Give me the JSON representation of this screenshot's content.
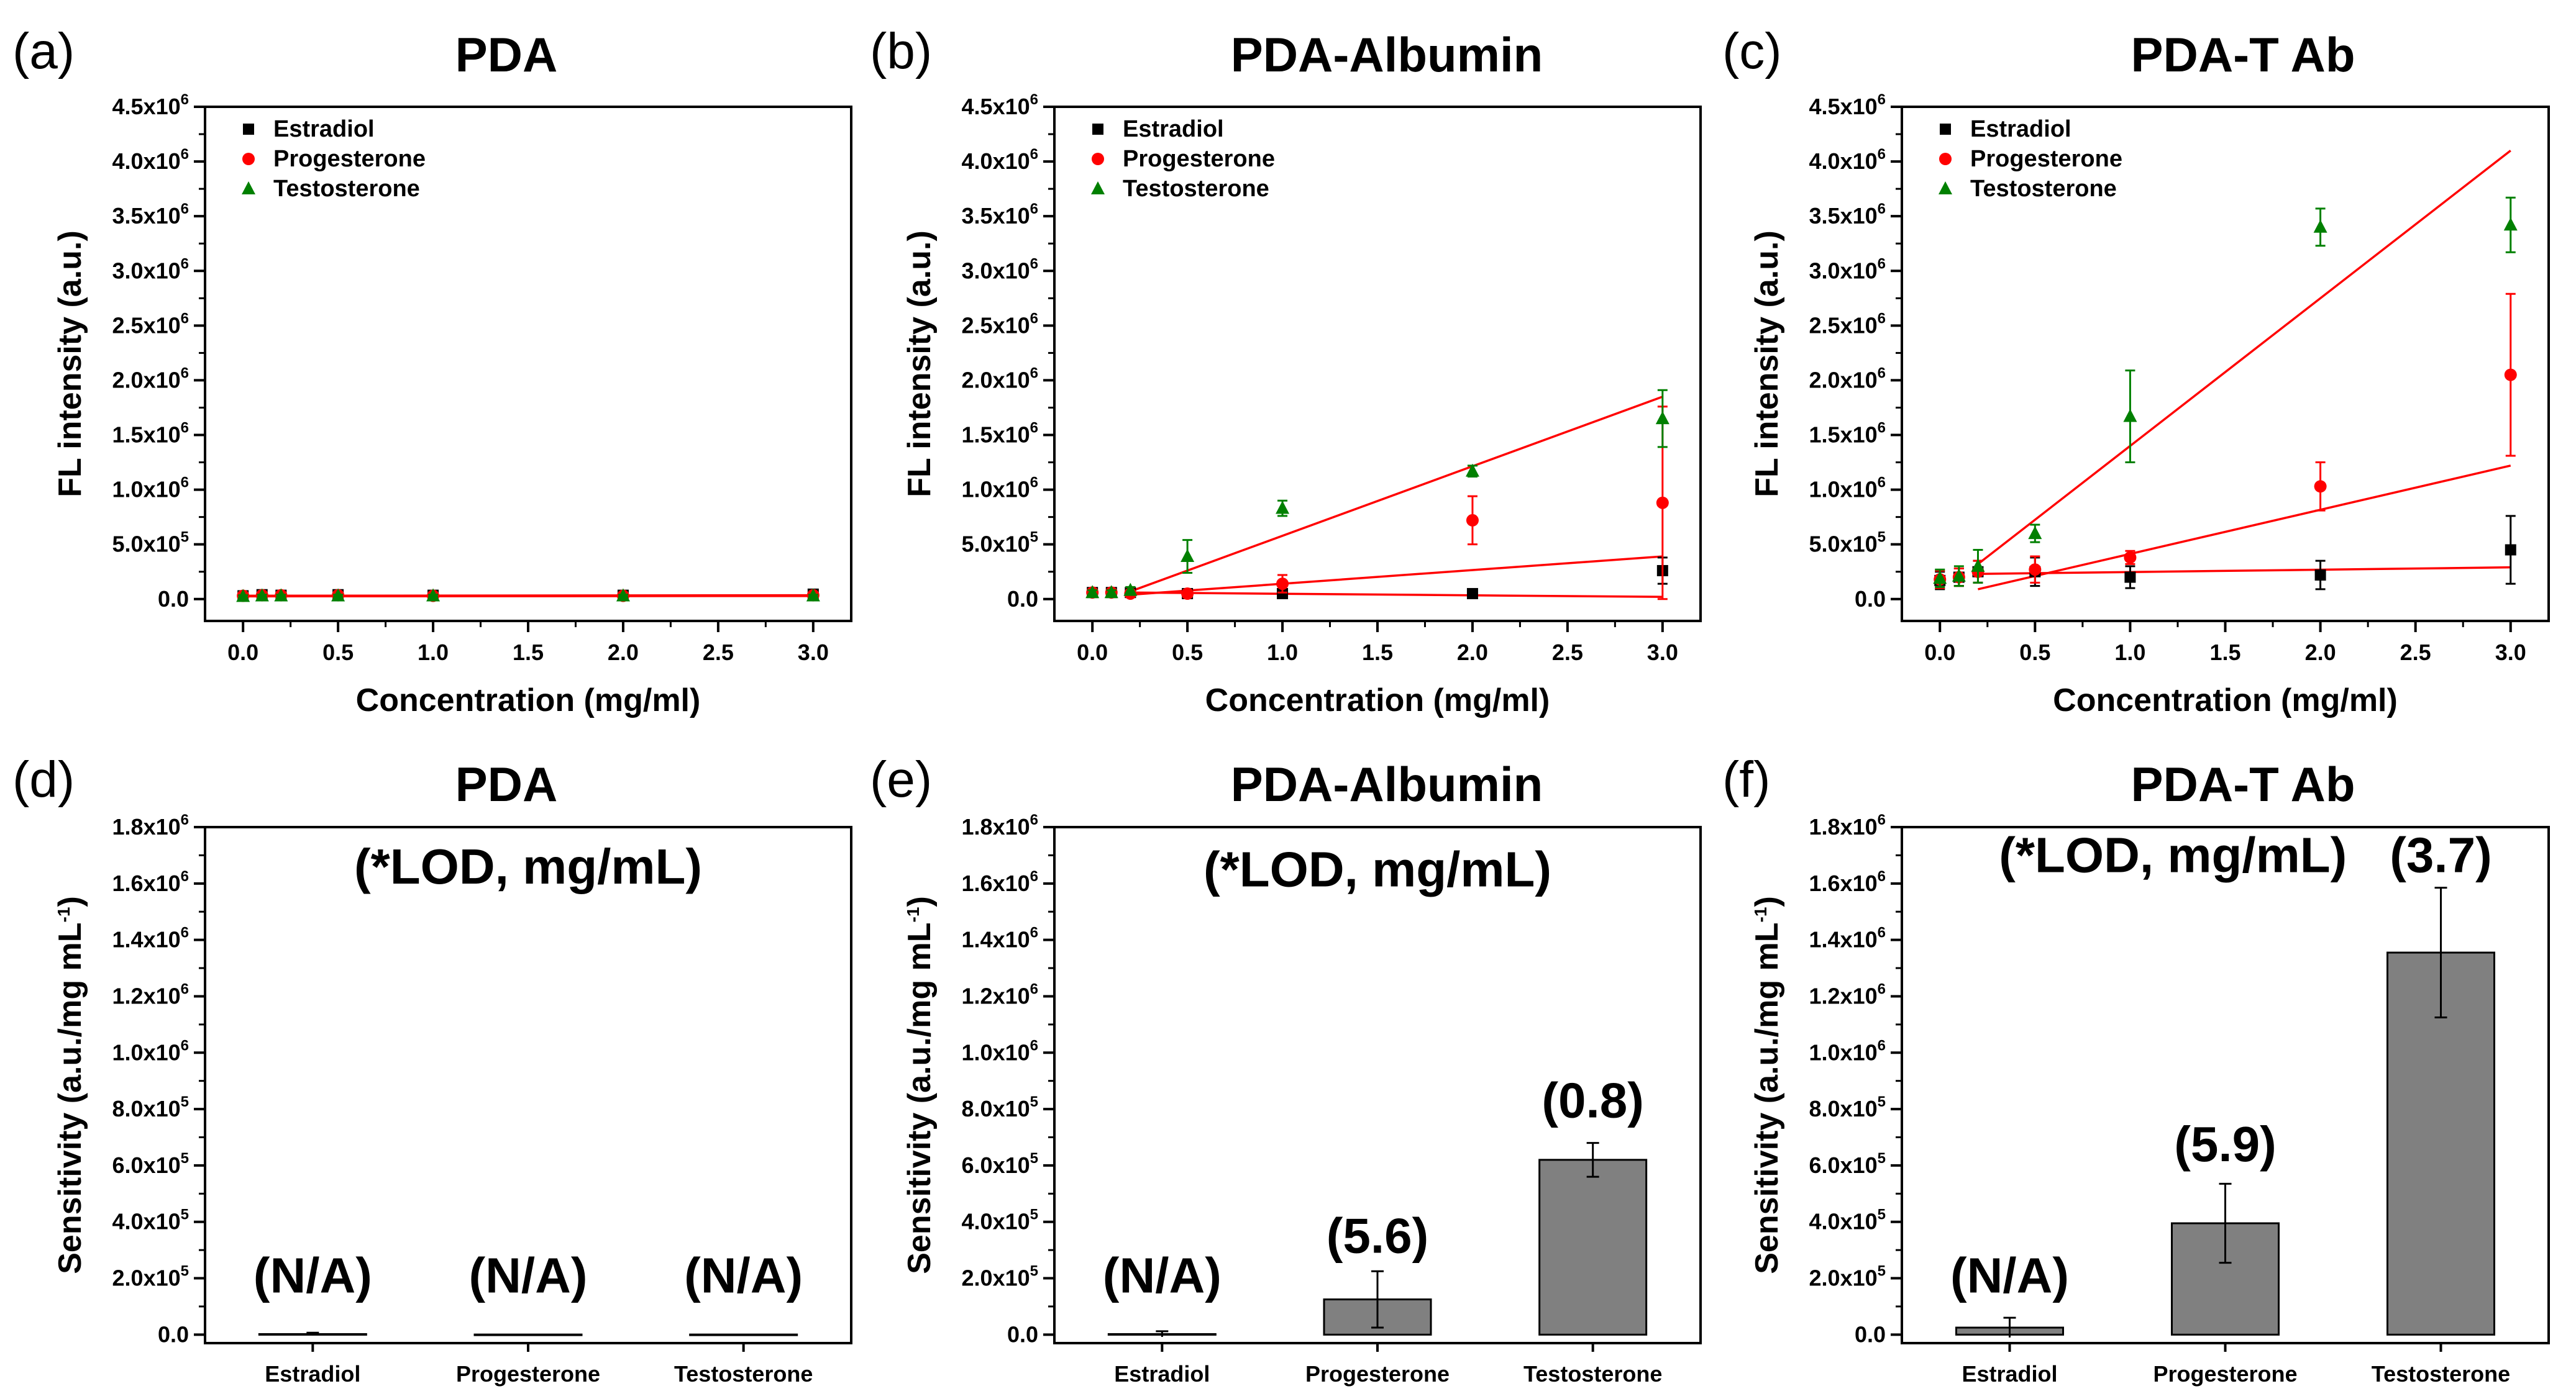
{
  "figure": {
    "panel_count": 6
  },
  "colors": {
    "estradiol": "#000000",
    "progesterone": "#ff0000",
    "testosterone": "#008000",
    "fit": "#ff0000",
    "bar": "#808080"
  },
  "chart_data": [
    {
      "id": "a",
      "letter": "(a)",
      "type": "scatter",
      "title": "PDA",
      "xlabel": "Concentration (mg/ml)",
      "ylabel": "FL intensity (a.u.)",
      "xlim": [
        -0.2,
        3.2
      ],
      "ylim": [
        -200000,
        4500000
      ],
      "xticks": [
        0.0,
        0.5,
        1.0,
        1.5,
        2.0,
        2.5,
        3.0
      ],
      "xtick_labels": [
        "0.0",
        "0.5",
        "1.0",
        "1.5",
        "2.0",
        "2.5",
        "3.0"
      ],
      "yticks": [
        0,
        500000,
        1000000,
        1500000,
        2000000,
        2500000,
        3000000,
        3500000,
        4000000,
        4500000
      ],
      "ytick_labels": [
        {
          "m": "0.0"
        },
        {
          "m": "5.0x10",
          "e": "5"
        },
        {
          "m": "1.0x10",
          "e": "6"
        },
        {
          "m": "1.5x10",
          "e": "6"
        },
        {
          "m": "2.0x10",
          "e": "6"
        },
        {
          "m": "2.5x10",
          "e": "6"
        },
        {
          "m": "3.0x10",
          "e": "6"
        },
        {
          "m": "3.5x10",
          "e": "6"
        },
        {
          "m": "4.0x10",
          "e": "6"
        },
        {
          "m": "4.5x10",
          "e": "6"
        }
      ],
      "legend": [
        "Estradiol",
        "Progesterone",
        "Testosterone"
      ],
      "series": [
        {
          "name": "Estradiol",
          "marker": "square",
          "color": "#000000",
          "x": [
            0.0,
            0.1,
            0.2,
            0.5,
            1.0,
            2.0,
            3.0
          ],
          "y": [
            30000,
            40000,
            35000,
            40000,
            35000,
            35000,
            45000
          ],
          "err": [
            15000,
            15000,
            15000,
            15000,
            15000,
            15000,
            15000
          ],
          "fit": [
            0.0,
            30000,
            3.0,
            35000
          ]
        },
        {
          "name": "Progesterone",
          "marker": "circle",
          "color": "#ff0000",
          "x": [
            0.0,
            0.1,
            0.2,
            0.5,
            1.0,
            2.0,
            3.0
          ],
          "y": [
            30000,
            35000,
            35000,
            35000,
            30000,
            30000,
            35000
          ],
          "err": [
            10000,
            10000,
            10000,
            10000,
            10000,
            10000,
            10000
          ],
          "fit": [
            0.0,
            30000,
            3.0,
            30000
          ]
        },
        {
          "name": "Testosterone",
          "marker": "triangle",
          "color": "#008000",
          "x": [
            0.0,
            0.1,
            0.2,
            0.5,
            1.0,
            2.0,
            3.0
          ],
          "y": [
            25000,
            30000,
            30000,
            30000,
            30000,
            30000,
            30000
          ],
          "err": [
            10000,
            10000,
            10000,
            10000,
            10000,
            10000,
            10000
          ],
          "fit": [
            0.0,
            25000,
            3.0,
            28000
          ]
        }
      ]
    },
    {
      "id": "b",
      "letter": "(b)",
      "type": "scatter",
      "title": "PDA-Albumin",
      "xlabel": "Concentration (mg/ml)",
      "ylabel": "FL intensity (a.u.)",
      "xlim": [
        -0.2,
        3.2
      ],
      "ylim": [
        -200000,
        4500000
      ],
      "xticks": [
        0.0,
        0.5,
        1.0,
        1.5,
        2.0,
        2.5,
        3.0
      ],
      "xtick_labels": [
        "0.0",
        "0.5",
        "1.0",
        "1.5",
        "2.0",
        "2.5",
        "3.0"
      ],
      "yticks": [
        0,
        500000,
        1000000,
        1500000,
        2000000,
        2500000,
        3000000,
        3500000,
        4000000,
        4500000
      ],
      "ytick_labels": [
        {
          "m": "0.0"
        },
        {
          "m": "5.0x10",
          "e": "5"
        },
        {
          "m": "1.0x10",
          "e": "6"
        },
        {
          "m": "1.5x10",
          "e": "6"
        },
        {
          "m": "2.0x10",
          "e": "6"
        },
        {
          "m": "2.5x10",
          "e": "6"
        },
        {
          "m": "3.0x10",
          "e": "6"
        },
        {
          "m": "3.5x10",
          "e": "6"
        },
        {
          "m": "4.0x10",
          "e": "6"
        },
        {
          "m": "4.5x10",
          "e": "6"
        }
      ],
      "legend": [
        "Estradiol",
        "Progesterone",
        "Testosterone"
      ],
      "series": [
        {
          "name": "Estradiol",
          "marker": "square",
          "color": "#000000",
          "x": [
            0.0,
            0.1,
            0.2,
            0.5,
            1.0,
            2.0,
            3.0
          ],
          "y": [
            60000,
            60000,
            60000,
            50000,
            50000,
            50000,
            260000
          ],
          "err": [
            20000,
            20000,
            20000,
            20000,
            20000,
            20000,
            120000
          ],
          "fit": [
            0.2,
            60000,
            3.0,
            20000
          ]
        },
        {
          "name": "Progesterone",
          "marker": "circle",
          "color": "#ff0000",
          "x": [
            0.0,
            0.1,
            0.2,
            0.5,
            1.0,
            2.0,
            3.0
          ],
          "y": [
            60000,
            60000,
            50000,
            50000,
            140000,
            720000,
            880000
          ],
          "err": [
            20000,
            20000,
            20000,
            30000,
            80000,
            220000,
            880000
          ],
          "fit": [
            0.2,
            40000,
            3.0,
            390000
          ]
        },
        {
          "name": "Testosterone",
          "marker": "triangle",
          "color": "#008000",
          "x": [
            0.0,
            0.1,
            0.2,
            0.5,
            1.0,
            2.0,
            3.0
          ],
          "y": [
            60000,
            60000,
            80000,
            390000,
            830000,
            1170000,
            1650000
          ],
          "err": [
            20000,
            20000,
            30000,
            150000,
            70000,
            50000,
            260000
          ],
          "fit": [
            0.2,
            70000,
            3.0,
            1850000
          ]
        }
      ]
    },
    {
      "id": "c",
      "letter": "(c)",
      "type": "scatter",
      "title": "PDA-T Ab",
      "xlabel": "Concentration (mg/ml)",
      "ylabel": "FL intensity (a.u.)",
      "xlim": [
        -0.2,
        3.2
      ],
      "ylim": [
        -200000,
        4500000
      ],
      "xticks": [
        0.0,
        0.5,
        1.0,
        1.5,
        2.0,
        2.5,
        3.0
      ],
      "xtick_labels": [
        "0.0",
        "0.5",
        "1.0",
        "1.5",
        "2.0",
        "2.5",
        "3.0"
      ],
      "yticks": [
        0,
        500000,
        1000000,
        1500000,
        2000000,
        2500000,
        3000000,
        3500000,
        4000000,
        4500000
      ],
      "ytick_labels": [
        {
          "m": "0.0"
        },
        {
          "m": "5.0x10",
          "e": "5"
        },
        {
          "m": "1.0x10",
          "e": "6"
        },
        {
          "m": "1.5x10",
          "e": "6"
        },
        {
          "m": "2.0x10",
          "e": "6"
        },
        {
          "m": "2.5x10",
          "e": "6"
        },
        {
          "m": "3.0x10",
          "e": "6"
        },
        {
          "m": "3.5x10",
          "e": "6"
        },
        {
          "m": "4.0x10",
          "e": "6"
        },
        {
          "m": "4.5x10",
          "e": "6"
        }
      ],
      "legend": [
        "Estradiol",
        "Progesterone",
        "Testosterone"
      ],
      "series": [
        {
          "name": "Estradiol",
          "marker": "square",
          "color": "#000000",
          "x": [
            0.0,
            0.1,
            0.2,
            0.5,
            1.0,
            2.0,
            3.0
          ],
          "y": [
            170000,
            200000,
            250000,
            250000,
            200000,
            220000,
            450000
          ],
          "err": [
            80000,
            80000,
            100000,
            130000,
            100000,
            130000,
            310000
          ],
          "fit": [
            0.2,
            230000,
            3.0,
            290000
          ]
        },
        {
          "name": "Progesterone",
          "marker": "circle",
          "color": "#ff0000",
          "x": [
            0.0,
            0.1,
            0.2,
            0.5,
            1.0,
            2.0,
            3.0
          ],
          "y": [
            180000,
            200000,
            250000,
            270000,
            380000,
            1030000,
            2050000
          ],
          "err": [
            80000,
            80000,
            100000,
            120000,
            60000,
            220000,
            740000
          ],
          "fit": [
            0.2,
            90000,
            3.0,
            1220000
          ]
        },
        {
          "name": "Testosterone",
          "marker": "triangle",
          "color": "#008000",
          "x": [
            0.0,
            0.1,
            0.2,
            0.5,
            1.0,
            2.0,
            3.0
          ],
          "y": [
            190000,
            210000,
            300000,
            600000,
            1670000,
            3400000,
            3420000
          ],
          "err": [
            80000,
            90000,
            150000,
            80000,
            420000,
            170000,
            250000
          ],
          "fit": [
            0.2,
            320000,
            3.0,
            4100000
          ]
        }
      ]
    },
    {
      "id": "d",
      "letter": "(d)",
      "type": "bar",
      "title": "PDA",
      "xlabel": "",
      "ylabel": "Sensitivity (a.u./mg mL",
      "ylabel_sup": "-1",
      "ylabel_end": ")",
      "ylim": [
        -30000,
        1800000
      ],
      "yticks": [
        0,
        200000,
        400000,
        600000,
        800000,
        1000000,
        1200000,
        1400000,
        1600000,
        1800000
      ],
      "ytick_labels": [
        {
          "m": "0.0"
        },
        {
          "m": "2.0x10",
          "e": "5"
        },
        {
          "m": "4.0x10",
          "e": "5"
        },
        {
          "m": "6.0x10",
          "e": "5"
        },
        {
          "m": "8.0x10",
          "e": "5"
        },
        {
          "m": "1.0x10",
          "e": "6"
        },
        {
          "m": "1.2x10",
          "e": "6"
        },
        {
          "m": "1.4x10",
          "e": "6"
        },
        {
          "m": "1.6x10",
          "e": "6"
        },
        {
          "m": "1.8x10",
          "e": "6"
        }
      ],
      "categories": [
        "Estradiol",
        "Progesterone",
        "Testosterone"
      ],
      "values": [
        2000,
        500,
        500
      ],
      "errors": [
        5000,
        0,
        0
      ],
      "lod_labels": [
        "(N/A)",
        "(N/A)",
        "(N/A)"
      ],
      "lod_label_y": [
        150000,
        150000,
        150000
      ],
      "annotation": "(*LOD, mg/mL)",
      "annotation_y": 1600000,
      "annotation_xc": 1.0
    },
    {
      "id": "e",
      "letter": "(e)",
      "type": "bar",
      "title": "PDA-Albumin",
      "xlabel": "",
      "ylabel": "Sensitivity (a.u./mg mL",
      "ylabel_sup": "-1",
      "ylabel_end": ")",
      "ylim": [
        -30000,
        1800000
      ],
      "yticks": [
        0,
        200000,
        400000,
        600000,
        800000,
        1000000,
        1200000,
        1400000,
        1600000,
        1800000
      ],
      "ytick_labels": [
        {
          "m": "0.0"
        },
        {
          "m": "2.0x10",
          "e": "5"
        },
        {
          "m": "4.0x10",
          "e": "5"
        },
        {
          "m": "6.0x10",
          "e": "5"
        },
        {
          "m": "8.0x10",
          "e": "5"
        },
        {
          "m": "1.0x10",
          "e": "6"
        },
        {
          "m": "1.2x10",
          "e": "6"
        },
        {
          "m": "1.4x10",
          "e": "6"
        },
        {
          "m": "1.6x10",
          "e": "6"
        },
        {
          "m": "1.8x10",
          "e": "6"
        }
      ],
      "categories": [
        "Estradiol",
        "Progesterone",
        "Testosterone"
      ],
      "values": [
        2000,
        125000,
        620000
      ],
      "errors": [
        10000,
        100000,
        60000
      ],
      "lod_labels": [
        "(N/A)",
        "(5.6)",
        "(0.8)"
      ],
      "lod_label_y": [
        150000,
        290000,
        770000
      ],
      "annotation": "(*LOD, mg/mL)",
      "annotation_y": 1590000,
      "annotation_xc": 1.0
    },
    {
      "id": "f",
      "letter": "(f)",
      "type": "bar",
      "title": "PDA-T Ab",
      "xlabel": "",
      "ylabel": "Sensitivity (a.u./mg mL",
      "ylabel_sup": "-1",
      "ylabel_end": ")",
      "ylim": [
        -30000,
        1800000
      ],
      "yticks": [
        0,
        200000,
        400000,
        600000,
        800000,
        1000000,
        1200000,
        1400000,
        1600000,
        1800000
      ],
      "ytick_labels": [
        {
          "m": "0.0"
        },
        {
          "m": "2.0x10",
          "e": "5"
        },
        {
          "m": "4.0x10",
          "e": "5"
        },
        {
          "m": "6.0x10",
          "e": "5"
        },
        {
          "m": "8.0x10",
          "e": "5"
        },
        {
          "m": "1.0x10",
          "e": "6"
        },
        {
          "m": "1.2x10",
          "e": "6"
        },
        {
          "m": "1.4x10",
          "e": "6"
        },
        {
          "m": "1.6x10",
          "e": "6"
        },
        {
          "m": "1.8x10",
          "e": "6"
        }
      ],
      "categories": [
        "Estradiol",
        "Progesterone",
        "Testosterone"
      ],
      "values": [
        25000,
        395000,
        1355000
      ],
      "errors": [
        35000,
        140000,
        230000
      ],
      "lod_labels": [
        "(N/A)",
        "(5.9)",
        "(3.7)"
      ],
      "lod_label_y": [
        150000,
        615000,
        1640000
      ],
      "annotation": "(*LOD, mg/mL)",
      "annotation_y": 1640000,
      "annotation_xc": 0.55
    }
  ]
}
